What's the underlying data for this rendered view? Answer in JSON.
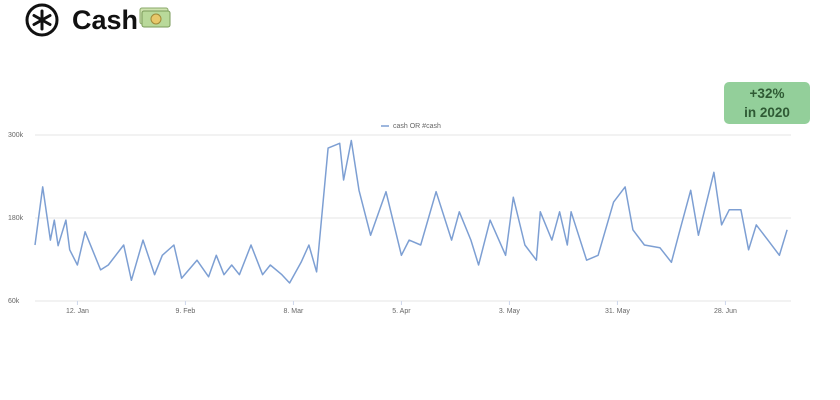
{
  "header": {
    "title": "Cash"
  },
  "badge": {
    "line1": "+32%",
    "line2": "in 2020"
  },
  "chart_data": {
    "type": "line",
    "series": [
      {
        "name": "cash OR #cash",
        "color": "#7d9fd3",
        "x": [
          0,
          2,
          4,
          5,
          6,
          8,
          9,
          11,
          13,
          17,
          19,
          23,
          25,
          28,
          31,
          33,
          36,
          38,
          42,
          45,
          47,
          49,
          51,
          53,
          56,
          59,
          61,
          64,
          66,
          69,
          71,
          73,
          76,
          79,
          80,
          82,
          84,
          87,
          91,
          95,
          97,
          100,
          104,
          108,
          110,
          113,
          115,
          118,
          122,
          124,
          127,
          130,
          131,
          134,
          136,
          138,
          139,
          143,
          146,
          150,
          153,
          155,
          158,
          162,
          165,
          167,
          170,
          172,
          176,
          178,
          180,
          183,
          185,
          187,
          190,
          193,
          195
        ],
        "values": [
          141,
          225,
          148,
          177,
          140,
          177,
          134,
          112,
          160,
          105,
          112,
          141,
          90,
          148,
          98,
          126,
          141,
          93,
          119,
          95,
          126,
          98,
          112,
          98,
          141,
          98,
          112,
          98,
          86,
          116,
          141,
          102,
          281,
          288,
          235,
          292,
          220,
          155,
          218,
          126,
          148,
          141,
          218,
          148,
          189,
          148,
          112,
          177,
          126,
          210,
          141,
          119,
          189,
          148,
          189,
          141,
          189,
          119,
          126,
          203,
          225,
          163,
          141,
          137,
          116,
          158,
          220,
          155,
          246,
          170,
          192,
          192,
          134,
          170,
          148,
          126,
          163
        ]
      }
    ],
    "xlim": [
      0,
      196
    ],
    "xticks": [
      {
        "value": 11,
        "label": "12. Jan"
      },
      {
        "value": 39,
        "label": "9. Feb"
      },
      {
        "value": 67,
        "label": "8. Mar"
      },
      {
        "value": 95,
        "label": "5. Apr"
      },
      {
        "value": 123,
        "label": "3. May"
      },
      {
        "value": 151,
        "label": "31. May"
      },
      {
        "value": 179,
        "label": "28. Jun"
      }
    ],
    "ylim": [
      60,
      300
    ],
    "yticks": [
      {
        "value": 60,
        "label": "60k"
      },
      {
        "value": 180,
        "label": "180k"
      },
      {
        "value": 300,
        "label": "300k"
      }
    ],
    "legend": "top"
  }
}
